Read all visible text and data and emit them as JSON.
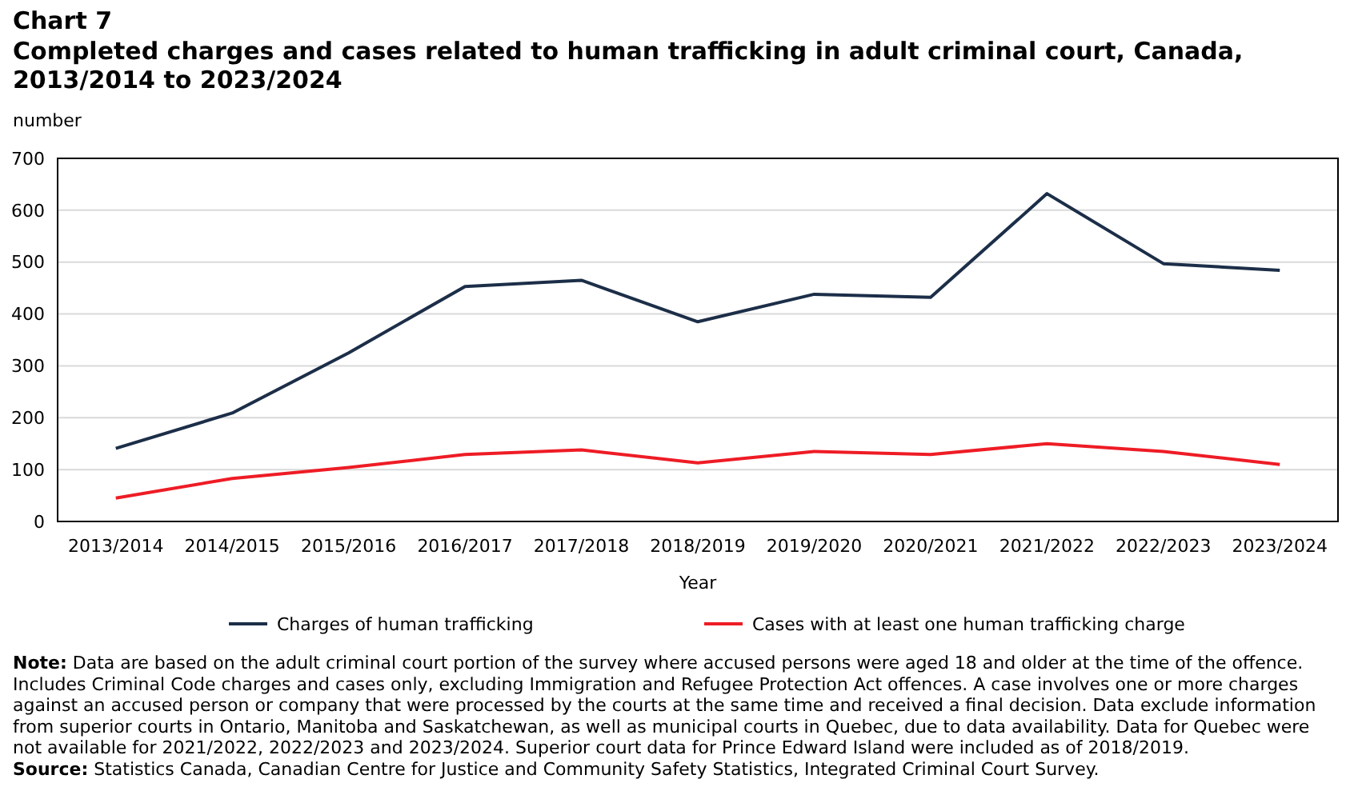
{
  "chart_data": {
    "type": "line",
    "title": "Chart 7",
    "subtitle": "Completed charges and cases related to human trafficking in adult criminal court, Canada, 2013/2014 to 2023/2024",
    "ylabel": "number",
    "xlabel": "Year",
    "categories": [
      "2013/2014",
      "2014/2015",
      "2015/2016",
      "2016/2017",
      "2017/2018",
      "2018/2019",
      "2019/2020",
      "2020/2021",
      "2021/2022",
      "2022/2023",
      "2023/2024"
    ],
    "series": [
      {
        "name": "Charges of human trafficking",
        "color": "#1c2e48",
        "values": [
          141,
          209,
          325,
          453,
          465,
          385,
          438,
          432,
          632,
          497,
          484
        ]
      },
      {
        "name": "Cases with at least one human trafficking charge",
        "color": "#ee1c25",
        "values": [
          45,
          83,
          104,
          129,
          138,
          113,
          135,
          129,
          150,
          135,
          110
        ]
      }
    ],
    "ylim": [
      0,
      700
    ],
    "yticks": [
      0,
      100,
      200,
      300,
      400,
      500,
      600,
      700
    ],
    "grid": "y",
    "legend": "bottom",
    "marker": "none",
    "line_style": "solid",
    "annotations": [
      "Note: Data are based on the adult criminal court portion of the survey where accused persons were aged 18 and older at the time of the offence. Includes Criminal Code charges and cases only, excluding Immigration and Refugee Protection Act offences. A case involves one or more charges against an accused person or company that were processed by the courts at the same time and received a final decision. Data exclude information from superior courts in Ontario, Manitoba and Saskatchewan, as well as municipal courts in Quebec, due to data availability. Data for Quebec were not available for 2021/2022, 2022/2023 and 2023/2024. Superior court data for Prince Edward Island were included as of 2018/2019.",
      "Source: Statistics Canada, Canadian Centre for Justice and Community Safety Statistics, Integrated Criminal Court Survey."
    ]
  }
}
